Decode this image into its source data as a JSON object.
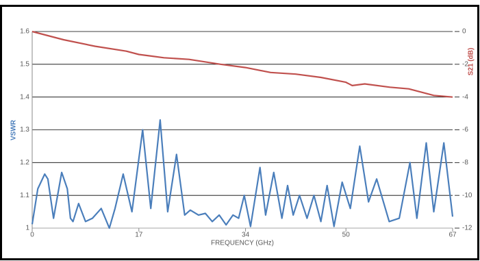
{
  "chart_data": {
    "type": "line",
    "xlabel": "FREQUENCY (GHz)",
    "ylabel": "VSWR",
    "y2label": "S21 (dB)",
    "xlim": [
      0,
      67
    ],
    "xticks": [
      0,
      17,
      34,
      50,
      67
    ],
    "ylim": [
      1,
      1.6
    ],
    "yticks": [
      1,
      1.1,
      1.2,
      1.3,
      1.4,
      1.5,
      1.6
    ],
    "y2lim": [
      -12,
      0
    ],
    "y2ticks": [
      -12,
      -10,
      -8,
      -6,
      -4,
      -2,
      0
    ],
    "grid": true,
    "series": [
      {
        "name": "VSWR",
        "color": "#4a7ebb",
        "axis": "y",
        "x": [
          0,
          0.9,
          2,
          2.5,
          3.4,
          4.7,
          5.6,
          6.1,
          6.5,
          7.4,
          8.5,
          9.6,
          11,
          12.3,
          13.2,
          14.5,
          15.9,
          17.6,
          18.9,
          20.4,
          21.6,
          23,
          24.3,
          25.2,
          26.5,
          27.6,
          28.7,
          29.8,
          30.9,
          32,
          32.9,
          33.8,
          34.8,
          36.3,
          37.2,
          38.5,
          39.8,
          40.7,
          41.6,
          42.6,
          43.8,
          44.9,
          46,
          47,
          48.1,
          49.4,
          50.7,
          52.2,
          53.6,
          54.9,
          56.9,
          58.5,
          60.2,
          61.3,
          62.8,
          64,
          65.6,
          67
        ],
        "values": [
          1.012,
          1.12,
          1.165,
          1.15,
          1.03,
          1.17,
          1.12,
          1.03,
          1.02,
          1.075,
          1.02,
          1.03,
          1.06,
          1.0,
          1.06,
          1.165,
          1.05,
          1.3,
          1.06,
          1.33,
          1.05,
          1.225,
          1.04,
          1.055,
          1.04,
          1.045,
          1.02,
          1.04,
          1.01,
          1.04,
          1.03,
          1.1,
          1.005,
          1.185,
          1.04,
          1.17,
          1.03,
          1.13,
          1.04,
          1.1,
          1.03,
          1.1,
          1.02,
          1.13,
          1.005,
          1.14,
          1.06,
          1.25,
          1.08,
          1.15,
          1.02,
          1.03,
          1.2,
          1.03,
          1.26,
          1.05,
          1.26,
          1.035
        ]
      },
      {
        "name": "S21",
        "color": "#c0504d",
        "axis": "y2",
        "x": [
          0,
          5,
          10,
          15,
          17,
          19,
          21,
          25,
          30,
          34,
          38,
          42,
          46,
          50,
          51,
          53,
          57,
          60,
          64,
          67
        ],
        "values": [
          0,
          -0.5,
          -0.9,
          -1.2,
          -1.4,
          -1.5,
          -1.6,
          -1.7,
          -2,
          -2.2,
          -2.5,
          -2.6,
          -2.8,
          -3.1,
          -3.3,
          -3.2,
          -3.4,
          -3.5,
          -3.9,
          -4
        ]
      }
    ]
  }
}
